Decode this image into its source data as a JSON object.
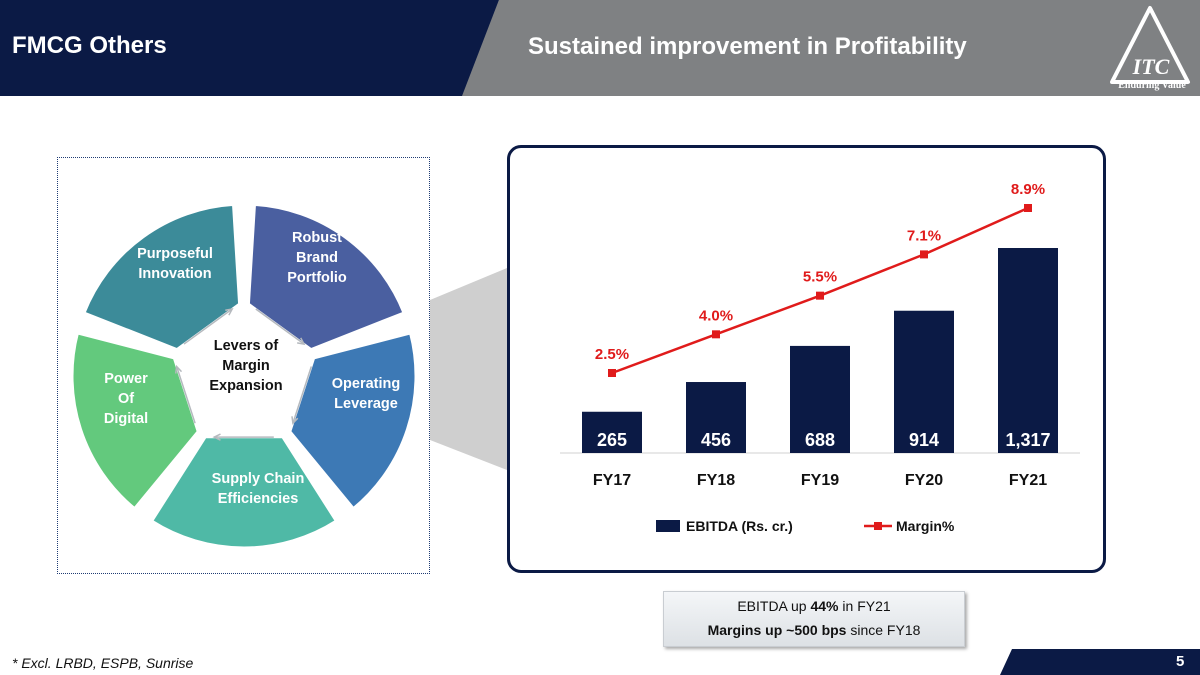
{
  "header": {
    "section": "FMCG Others",
    "title": "Sustained improvement in Profitability",
    "logo_text": "ITC",
    "logo_tagline": "Enduring Value"
  },
  "levers": {
    "center": "Levers of\nMargin\nExpansion",
    "segments": [
      {
        "label": "Robust\nBrand\nPortfolio",
        "color": "#4a5fa0"
      },
      {
        "label": "Operating\nLeverage",
        "color": "#3d79b5"
      },
      {
        "label": "Supply Chain\nEfficiencies",
        "color": "#4fb9a6"
      },
      {
        "label": "Power\nOf\nDigital",
        "color": "#63c97d"
      },
      {
        "label": "Purposeful\nInnovation",
        "color": "#3c8b99"
      }
    ]
  },
  "chart_data": {
    "type": "bar+line",
    "categories": [
      "FY17",
      "FY18",
      "FY19",
      "FY20",
      "FY21"
    ],
    "series": [
      {
        "name": "EBITDA (Rs. cr.)",
        "type": "bar",
        "values": [
          265,
          456,
          688,
          914,
          1317
        ],
        "labels": [
          "265",
          "456",
          "688",
          "914",
          "1,317"
        ],
        "color": "#0b1a45"
      },
      {
        "name": "Margin%",
        "type": "line",
        "values": [
          2.5,
          4.0,
          5.5,
          7.1,
          8.9
        ],
        "labels": [
          "2.5%",
          "4.0%",
          "5.5%",
          "7.1%",
          "8.9%"
        ],
        "color": "#e01b1b"
      }
    ],
    "legend_position": "bottom"
  },
  "callout": {
    "line1_pre": "EBITDA up ",
    "line1_bold": "44%",
    "line1_post": " in FY21",
    "line2_bold": "Margins up ~500 bps",
    "line2_post": " since FY18"
  },
  "footnote": "* Excl. LRBD, ESPB, Sunrise",
  "page_number": "5"
}
